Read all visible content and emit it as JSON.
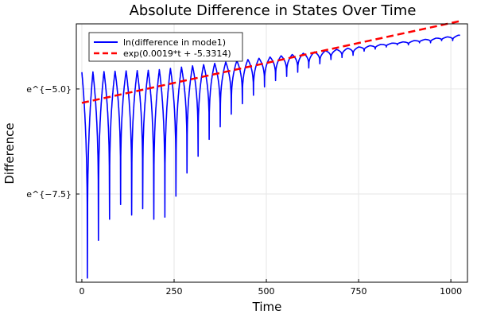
{
  "chart_data": {
    "type": "line",
    "title": "Absolute Difference in States Over Time",
    "xlabel": "Time",
    "ylabel": "Difference",
    "xlim": [
      -15,
      1045
    ],
    "ylim": [
      -9.6,
      -3.45
    ],
    "x_ticks": [
      0,
      250,
      500,
      750,
      1000
    ],
    "x_tick_labels": [
      "0",
      "250",
      "500",
      "750",
      "1000"
    ],
    "y_ticks": [
      -5.0,
      -7.5
    ],
    "y_tick_labels": [
      "e^{−5.0}",
      "e^{−7.5}"
    ],
    "grid": true,
    "legend_position": "top-left",
    "series": [
      {
        "name": "ln(difference in mode1)",
        "color": "#0000ff",
        "style": "solid",
        "period": 30,
        "x_range": [
          0,
          1025
        ],
        "envelope": [
          {
            "x": 0,
            "y": -4.6
          },
          {
            "x": 200,
            "y": -4.55
          },
          {
            "x": 400,
            "y": -4.35
          },
          {
            "x": 600,
            "y": -4.15
          },
          {
            "x": 800,
            "y": -3.95
          },
          {
            "x": 1000,
            "y": -3.75
          },
          {
            "x": 1020,
            "y": -3.72
          }
        ],
        "troughs": [
          {
            "x": 15,
            "y": -9.5
          },
          {
            "x": 45,
            "y": -8.6
          },
          {
            "x": 75,
            "y": -8.1
          },
          {
            "x": 105,
            "y": -7.75
          },
          {
            "x": 135,
            "y": -8.0
          },
          {
            "x": 165,
            "y": -7.85
          },
          {
            "x": 195,
            "y": -8.1
          },
          {
            "x": 225,
            "y": -8.05
          },
          {
            "x": 255,
            "y": -7.55
          },
          {
            "x": 285,
            "y": -7.0
          },
          {
            "x": 315,
            "y": -6.6
          },
          {
            "x": 345,
            "y": -6.2
          },
          {
            "x": 375,
            "y": -5.9
          },
          {
            "x": 405,
            "y": -5.6
          },
          {
            "x": 435,
            "y": -5.35
          },
          {
            "x": 465,
            "y": -5.15
          },
          {
            "x": 495,
            "y": -4.95
          },
          {
            "x": 525,
            "y": -4.8
          },
          {
            "x": 555,
            "y": -4.7
          },
          {
            "x": 585,
            "y": -4.6
          },
          {
            "x": 615,
            "y": -4.5
          },
          {
            "x": 645,
            "y": -4.4
          },
          {
            "x": 675,
            "y": -4.3
          },
          {
            "x": 705,
            "y": -4.25
          },
          {
            "x": 735,
            "y": -4.2
          },
          {
            "x": 765,
            "y": -4.1
          },
          {
            "x": 795,
            "y": -4.05
          },
          {
            "x": 825,
            "y": -4.0
          },
          {
            "x": 855,
            "y": -3.95
          },
          {
            "x": 885,
            "y": -3.95
          },
          {
            "x": 915,
            "y": -3.9
          },
          {
            "x": 945,
            "y": -3.9
          },
          {
            "x": 975,
            "y": -3.85
          },
          {
            "x": 1005,
            "y": -3.85
          }
        ]
      },
      {
        "name": "exp(0.0019*t + -5.3314)",
        "color": "#ff0000",
        "style": "dashed",
        "slope": 0.0019,
        "intercept": -5.3314,
        "x_range": [
          0,
          1025
        ]
      }
    ]
  }
}
